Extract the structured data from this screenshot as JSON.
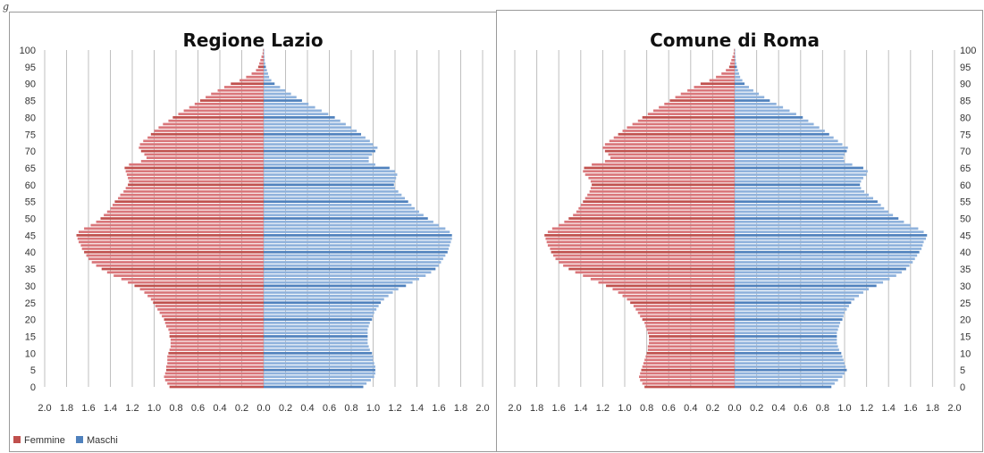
{
  "figure_label": "g",
  "colors": {
    "femmine": "#d9767a",
    "femmine_dark": "#c0504d",
    "maschi": "#8fb2dc",
    "maschi_dark": "#4f81bd",
    "grid": "#bfbfbf",
    "frame": "#9a9a9a"
  },
  "legend": {
    "femmine": "Femmine",
    "maschi": "Maschi"
  },
  "chart_data": [
    {
      "type": "bar",
      "orientation": "horizontal",
      "title": "Regione Lazio",
      "x_ticks": [
        "2.0",
        "1.8",
        "1.6",
        "1.4",
        "1.2",
        "1.0",
        "0.8",
        "0.6",
        "0.4",
        "0.2",
        "0.0",
        "0.2",
        "0.4",
        "0.6",
        "0.8",
        "1.0",
        "1.2",
        "1.4",
        "1.6",
        "1.8",
        "2.0"
      ],
      "y_ticks": [
        "0",
        "5",
        "10",
        "15",
        "20",
        "25",
        "30",
        "35",
        "40",
        "45",
        "50",
        "55",
        "60",
        "65",
        "70",
        "75",
        "80",
        "85",
        "90",
        "95",
        "100"
      ],
      "y_label_side": "left",
      "xlim": [
        -2.0,
        2.0
      ],
      "ylim": [
        0,
        100
      ],
      "ages": [
        0,
        1,
        2,
        3,
        4,
        5,
        6,
        7,
        8,
        9,
        10,
        11,
        12,
        13,
        14,
        15,
        16,
        17,
        18,
        19,
        20,
        21,
        22,
        23,
        24,
        25,
        26,
        27,
        28,
        29,
        30,
        31,
        32,
        33,
        34,
        35,
        36,
        37,
        38,
        39,
        40,
        41,
        42,
        43,
        44,
        45,
        46,
        47,
        48,
        49,
        50,
        51,
        52,
        53,
        54,
        55,
        56,
        57,
        58,
        59,
        60,
        61,
        62,
        63,
        64,
        65,
        66,
        67,
        68,
        69,
        70,
        71,
        72,
        73,
        74,
        75,
        76,
        77,
        78,
        79,
        80,
        81,
        82,
        83,
        84,
        85,
        86,
        87,
        88,
        89,
        90,
        91,
        92,
        93,
        94,
        95,
        96,
        97,
        98,
        99,
        100
      ],
      "series": [
        {
          "name": "Femmine",
          "values": [
            0.86,
            0.88,
            0.9,
            0.91,
            0.9,
            0.89,
            0.89,
            0.88,
            0.88,
            0.88,
            0.87,
            0.86,
            0.85,
            0.85,
            0.85,
            0.86,
            0.86,
            0.87,
            0.89,
            0.9,
            0.91,
            0.93,
            0.95,
            0.97,
            0.99,
            1.01,
            1.03,
            1.06,
            1.09,
            1.13,
            1.18,
            1.24,
            1.3,
            1.37,
            1.43,
            1.48,
            1.53,
            1.57,
            1.6,
            1.62,
            1.64,
            1.66,
            1.67,
            1.69,
            1.7,
            1.71,
            1.69,
            1.64,
            1.58,
            1.53,
            1.49,
            1.46,
            1.43,
            1.4,
            1.38,
            1.36,
            1.33,
            1.31,
            1.28,
            1.26,
            1.24,
            1.23,
            1.24,
            1.25,
            1.26,
            1.27,
            1.23,
            1.12,
            1.07,
            1.09,
            1.12,
            1.14,
            1.13,
            1.1,
            1.06,
            1.03,
            1.0,
            0.96,
            0.92,
            0.87,
            0.83,
            0.78,
            0.73,
            0.68,
            0.63,
            0.58,
            0.53,
            0.48,
            0.42,
            0.36,
            0.3,
            0.22,
            0.16,
            0.11,
            0.07,
            0.05,
            0.04,
            0.03,
            0.02,
            0.01,
            0.005
          ]
        },
        {
          "name": "Maschi",
          "values": [
            0.91,
            0.94,
            0.98,
            1.01,
            1.02,
            1.02,
            1.02,
            1.01,
            1.0,
            1.0,
            0.99,
            0.97,
            0.96,
            0.95,
            0.95,
            0.95,
            0.95,
            0.95,
            0.96,
            0.97,
            0.99,
            1.0,
            1.01,
            1.03,
            1.05,
            1.07,
            1.1,
            1.14,
            1.18,
            1.23,
            1.3,
            1.36,
            1.42,
            1.48,
            1.53,
            1.57,
            1.6,
            1.62,
            1.64,
            1.66,
            1.68,
            1.69,
            1.7,
            1.71,
            1.72,
            1.72,
            1.7,
            1.66,
            1.6,
            1.55,
            1.5,
            1.46,
            1.42,
            1.38,
            1.35,
            1.32,
            1.29,
            1.26,
            1.23,
            1.2,
            1.19,
            1.2,
            1.21,
            1.22,
            1.2,
            1.15,
            1.02,
            0.96,
            0.96,
            0.99,
            1.02,
            1.04,
            1.0,
            0.97,
            0.93,
            0.89,
            0.85,
            0.8,
            0.75,
            0.7,
            0.65,
            0.59,
            0.53,
            0.47,
            0.41,
            0.35,
            0.3,
            0.25,
            0.2,
            0.15,
            0.1,
            0.07,
            0.05,
            0.04,
            0.03,
            0.02,
            0.015,
            0.01,
            0.008,
            0.005,
            0.003
          ]
        }
      ]
    },
    {
      "type": "bar",
      "orientation": "horizontal",
      "title": "Comune di Roma",
      "x_ticks": [
        "2.0",
        "1.8",
        "1.6",
        "1.4",
        "1.2",
        "1.0",
        "0.8",
        "0.6",
        "0.4",
        "0.2",
        "0.0",
        "0.2",
        "0.4",
        "0.6",
        "0.8",
        "1.0",
        "1.2",
        "1.4",
        "1.6",
        "1.8",
        "2.0"
      ],
      "y_ticks": [
        "0",
        "5",
        "10",
        "15",
        "20",
        "25",
        "30",
        "35",
        "40",
        "45",
        "50",
        "55",
        "60",
        "65",
        "70",
        "75",
        "80",
        "85",
        "90",
        "95",
        "100"
      ],
      "y_label_side": "right",
      "xlim": [
        -2.0,
        2.0
      ],
      "ylim": [
        0,
        100
      ],
      "ages": [
        0,
        1,
        2,
        3,
        4,
        5,
        6,
        7,
        8,
        9,
        10,
        11,
        12,
        13,
        14,
        15,
        16,
        17,
        18,
        19,
        20,
        21,
        22,
        23,
        24,
        25,
        26,
        27,
        28,
        29,
        30,
        31,
        32,
        33,
        34,
        35,
        36,
        37,
        38,
        39,
        40,
        41,
        42,
        43,
        44,
        45,
        46,
        47,
        48,
        49,
        50,
        51,
        52,
        53,
        54,
        55,
        56,
        57,
        58,
        59,
        60,
        61,
        62,
        63,
        64,
        65,
        66,
        67,
        68,
        69,
        70,
        71,
        72,
        73,
        74,
        75,
        76,
        77,
        78,
        79,
        80,
        81,
        82,
        83,
        84,
        85,
        86,
        87,
        88,
        89,
        90,
        91,
        92,
        93,
        94,
        95,
        96,
        97,
        98,
        99,
        100
      ],
      "series": [
        {
          "name": "Femmine",
          "values": [
            0.82,
            0.84,
            0.86,
            0.87,
            0.86,
            0.85,
            0.84,
            0.83,
            0.82,
            0.81,
            0.8,
            0.79,
            0.79,
            0.78,
            0.78,
            0.78,
            0.79,
            0.8,
            0.81,
            0.82,
            0.84,
            0.86,
            0.88,
            0.9,
            0.92,
            0.95,
            0.98,
            1.02,
            1.06,
            1.11,
            1.17,
            1.24,
            1.31,
            1.38,
            1.45,
            1.51,
            1.56,
            1.6,
            1.63,
            1.65,
            1.67,
            1.68,
            1.7,
            1.71,
            1.72,
            1.73,
            1.7,
            1.66,
            1.6,
            1.55,
            1.51,
            1.47,
            1.44,
            1.42,
            1.4,
            1.38,
            1.36,
            1.34,
            1.32,
            1.31,
            1.3,
            1.31,
            1.33,
            1.36,
            1.38,
            1.37,
            1.3,
            1.18,
            1.13,
            1.15,
            1.18,
            1.2,
            1.18,
            1.14,
            1.1,
            1.06,
            1.02,
            0.98,
            0.93,
            0.88,
            0.84,
            0.79,
            0.74,
            0.69,
            0.64,
            0.59,
            0.54,
            0.49,
            0.43,
            0.37,
            0.31,
            0.23,
            0.17,
            0.12,
            0.08,
            0.05,
            0.04,
            0.03,
            0.02,
            0.01,
            0.005
          ]
        },
        {
          "name": "Maschi",
          "values": [
            0.88,
            0.91,
            0.94,
            0.98,
            1.0,
            1.02,
            1.01,
            1.0,
            0.99,
            0.98,
            0.97,
            0.95,
            0.94,
            0.93,
            0.93,
            0.93,
            0.93,
            0.94,
            0.95,
            0.96,
            0.98,
            0.99,
            1.0,
            1.02,
            1.04,
            1.06,
            1.09,
            1.13,
            1.17,
            1.22,
            1.29,
            1.35,
            1.41,
            1.47,
            1.52,
            1.56,
            1.59,
            1.62,
            1.64,
            1.66,
            1.68,
            1.7,
            1.71,
            1.72,
            1.74,
            1.75,
            1.72,
            1.67,
            1.6,
            1.54,
            1.49,
            1.44,
            1.4,
            1.36,
            1.33,
            1.3,
            1.26,
            1.22,
            1.18,
            1.15,
            1.14,
            1.15,
            1.17,
            1.2,
            1.21,
            1.17,
            1.07,
            1.0,
            0.99,
            1.0,
            1.02,
            1.03,
            0.98,
            0.94,
            0.9,
            0.86,
            0.82,
            0.77,
            0.72,
            0.67,
            0.62,
            0.56,
            0.5,
            0.44,
            0.38,
            0.32,
            0.27,
            0.22,
            0.17,
            0.13,
            0.09,
            0.07,
            0.05,
            0.04,
            0.03,
            0.02,
            0.015,
            0.01,
            0.008,
            0.005,
            0.003
          ]
        }
      ]
    }
  ]
}
